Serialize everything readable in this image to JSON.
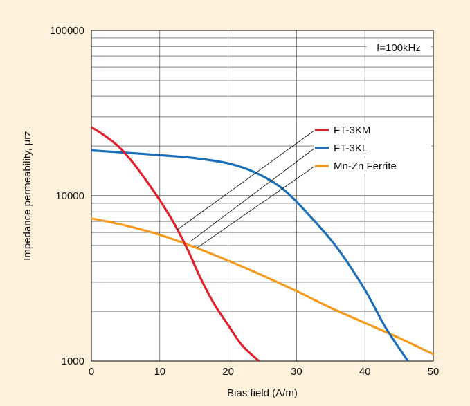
{
  "chart_data": {
    "type": "line",
    "xlabel": "Bias field (A/m)",
    "ylabel": "Impedance permeability, μrz",
    "annotation": "f=100kHz",
    "xlim": [
      0,
      50
    ],
    "ylim": [
      1000,
      100000
    ],
    "yscale": "log",
    "x_ticks": [
      0,
      10,
      20,
      30,
      40,
      50
    ],
    "x_tick_labels": [
      "0",
      "10",
      "20",
      "30",
      "40",
      "50"
    ],
    "y_ticks": [
      1000,
      10000,
      100000
    ],
    "y_tick_labels": [
      "1000",
      "10000",
      "100000"
    ],
    "grid": true,
    "legend_position": "right",
    "series": [
      {
        "name": "FT-3KM",
        "color": "#e0202a",
        "x": [
          0,
          2,
          4,
          6,
          8,
          10,
          12,
          14,
          16,
          18,
          20,
          22,
          24.5
        ],
        "y": [
          26000,
          23000,
          19800,
          16000,
          12400,
          9400,
          6900,
          4800,
          3150,
          2200,
          1650,
          1250,
          1000
        ]
      },
      {
        "name": "FT-3KL",
        "color": "#1a6fb8",
        "x": [
          0,
          5,
          10,
          15,
          20,
          24,
          28,
          32,
          36,
          40,
          43,
          46.3
        ],
        "y": [
          18800,
          18200,
          17600,
          16900,
          15700,
          13800,
          11000,
          7500,
          4800,
          2700,
          1600,
          1000
        ]
      },
      {
        "name": "Mn-Zn Ferrite",
        "color": "#f39a1f",
        "x": [
          0,
          5,
          10,
          15,
          20,
          25,
          30,
          35,
          40,
          45,
          50
        ],
        "y": [
          7300,
          6600,
          5800,
          4900,
          4050,
          3300,
          2650,
          2100,
          1700,
          1380,
          1100
        ]
      }
    ]
  }
}
